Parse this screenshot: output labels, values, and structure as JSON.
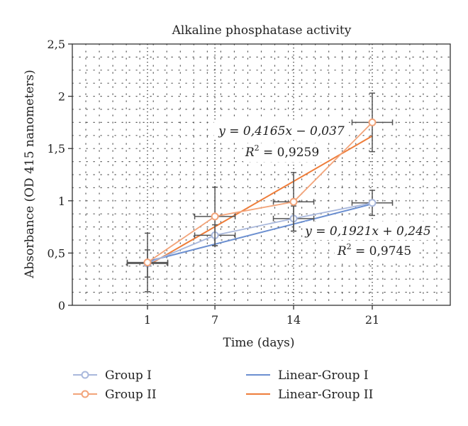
{
  "chart_data": {
    "type": "line",
    "title": "Alkaline phosphatase activity",
    "xlabel": "Time (days)",
    "ylabel": "Absorbance (OD 415 nanometers)",
    "x_tick_labels": [
      "1",
      "7",
      "14",
      "21"
    ],
    "y_tick_labels": [
      "0",
      "0,5",
      "1",
      "1,5",
      "2",
      "2,5"
    ],
    "ylim": [
      0,
      2.5
    ],
    "grid": true,
    "legend_position": "bottom",
    "series": [
      {
        "name": "Group I",
        "color": "#a9b8dc",
        "x": [
          1,
          7,
          14,
          21
        ],
        "y": [
          0.4,
          0.67,
          0.83,
          0.98
        ],
        "y_err": [
          0.13,
          0.1,
          0.12,
          0.12
        ],
        "x_err": [
          1.8,
          1.8,
          1.8,
          1.8
        ]
      },
      {
        "name": "Group II",
        "color": "#f2a47a",
        "x": [
          1,
          7,
          14,
          21
        ],
        "y": [
          0.41,
          0.85,
          0.99,
          1.75
        ],
        "y_err": [
          0.28,
          0.28,
          0.28,
          0.28
        ],
        "x_err": [
          1.8,
          1.8,
          1.8,
          1.8
        ]
      }
    ],
    "trendlines": [
      {
        "name": "Linear-Group I",
        "color": "#6b8fd0",
        "equation": "y = 0,1921x + 0,245",
        "r2": "R2 = 0,9745",
        "r2_label": "R",
        "r2_sup": "2",
        "r2_rest": " = 0,9745",
        "x": [
          1,
          21
        ],
        "y": [
          0.42,
          0.97
        ]
      },
      {
        "name": "Linear-Group II",
        "color": "#ee7d3a",
        "equation": "y = 0,4165x − 0,037",
        "r2": "R2 = 0,9259",
        "r2_label": "R",
        "r2_sup": "2",
        "r2_rest": " = 0,9259",
        "x": [
          1,
          21
        ],
        "y": [
          0.38,
          1.62
        ]
      }
    ]
  }
}
